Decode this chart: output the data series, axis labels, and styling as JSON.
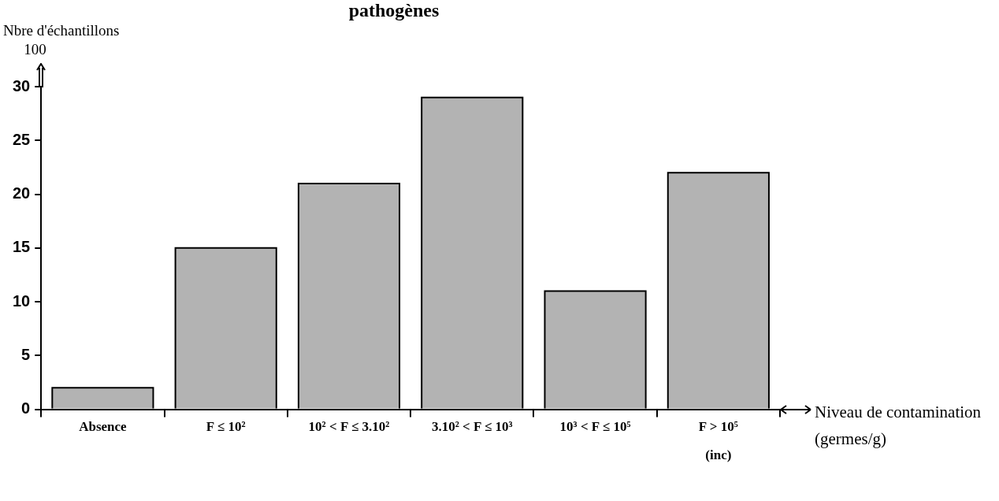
{
  "chart_data": {
    "type": "bar",
    "title": "pathogènes",
    "ylabel": "Nbre d'échantillons",
    "xlabel": "Niveau de contamination (germes/g)",
    "annotations": [
      "100",
      "(inc)"
    ],
    "categories": [
      "Absence",
      "F ≤ 10²",
      "10² < F ≤ 3.10²",
      "3.10² < F ≤ 10³",
      "10³ < F ≤ 10⁵",
      "F > 10⁵"
    ],
    "values": [
      2,
      15,
      21,
      29,
      11,
      22
    ],
    "color": "#b3b3b3",
    "ylim": [
      0,
      30
    ],
    "yticks": [
      0,
      5,
      10,
      15,
      20,
      25,
      30
    ],
    "grid": false,
    "legend": false
  }
}
